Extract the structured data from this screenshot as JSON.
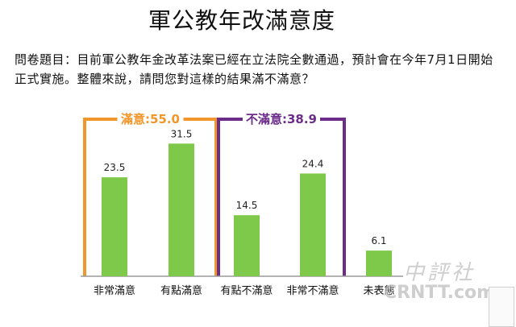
{
  "title": "軍公教年改滿意度",
  "question": "問卷題目：目前軍公教年金改革法案已經在立法院全數通過，預計會在今年7月1日開始正式實施。整體來說，請問您對這樣的結果滿不滿意？",
  "colors": {
    "bar": "#7ec94a",
    "satisfied_box": "#f0962a",
    "dissatisfied_box": "#6b2c8a",
    "baseline": "#9a9a9a"
  },
  "watermark": {
    "chinese": "中評社",
    "latin": "CRNTT.com"
  },
  "chart_data": {
    "type": "bar",
    "categories": [
      "非常滿意",
      "有點滿意",
      "有點不滿意",
      "非常不滿意",
      "未表態"
    ],
    "values": [
      23.5,
      31.5,
      14.5,
      24.4,
      6.1
    ],
    "value_labels": [
      "23.5",
      "31.5",
      "14.5",
      "24.4",
      "6.1"
    ],
    "ylim": [
      0,
      35
    ],
    "grid": false,
    "groups": [
      {
        "label": "滿意:55.0",
        "members": [
          0,
          1
        ],
        "color": "#f0962a"
      },
      {
        "label": "不滿意:38.9",
        "members": [
          2,
          3
        ],
        "color": "#6b2c8a"
      }
    ]
  }
}
